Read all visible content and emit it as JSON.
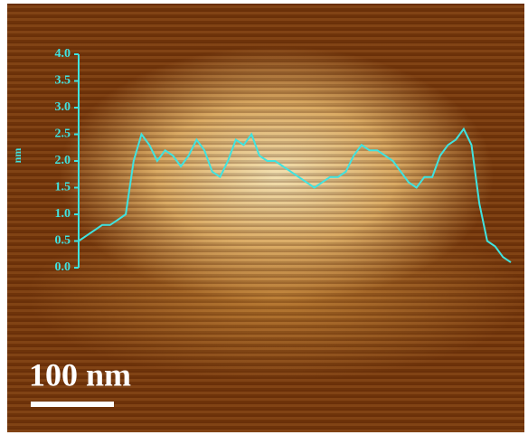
{
  "chart_data": {
    "type": "line",
    "y_label": "nm",
    "scale_bar": "100 nm",
    "ylim": [
      0,
      4
    ],
    "yticks": [
      {
        "value": 0,
        "label": "0.0"
      },
      {
        "value": 0.5,
        "label": "0.5"
      },
      {
        "value": 1,
        "label": "1.0"
      },
      {
        "value": 1.5,
        "label": "1.5"
      },
      {
        "value": 2,
        "label": "2.0"
      },
      {
        "value": 2.5,
        "label": "2.5"
      },
      {
        "value": 3,
        "label": "3.0"
      },
      {
        "value": 3.5,
        "label": "3.5"
      },
      {
        "value": 4,
        "label": "4.0"
      }
    ],
    "color": "#3fe3e0",
    "values": [
      0.5,
      0.6,
      0.7,
      0.8,
      0.8,
      0.9,
      1.0,
      2.0,
      2.5,
      2.3,
      2.0,
      2.2,
      2.1,
      1.9,
      2.1,
      2.4,
      2.2,
      1.8,
      1.7,
      2.0,
      2.4,
      2.3,
      2.5,
      2.1,
      2.0,
      2.0,
      1.9,
      1.8,
      1.7,
      1.6,
      1.5,
      1.6,
      1.7,
      1.7,
      1.8,
      2.1,
      2.3,
      2.2,
      2.2,
      2.1,
      2.0,
      1.8,
      1.6,
      1.5,
      1.7,
      1.7,
      2.1,
      2.3,
      2.4,
      2.6,
      2.3,
      1.2,
      0.5,
      0.4,
      0.2,
      0.1
    ]
  }
}
